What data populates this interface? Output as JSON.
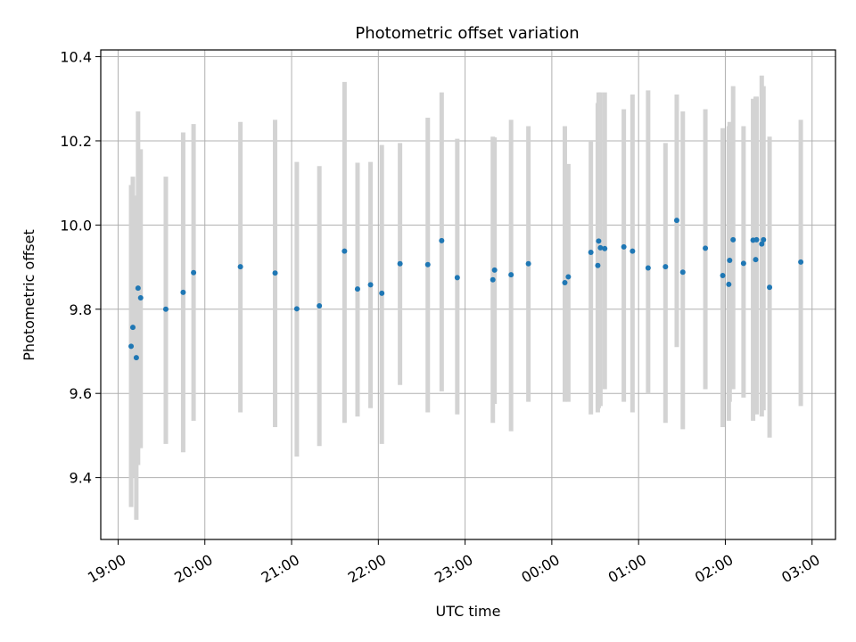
{
  "chart_data": {
    "type": "scatter",
    "title": "Photometric offset variation",
    "xlabel": "UTC time",
    "ylabel": "Photometric offset",
    "x_ticks": [
      "19:00",
      "20:00",
      "21:00",
      "22:00",
      "23:00",
      "00:00",
      "01:00",
      "02:00",
      "03:00"
    ],
    "y_ticks": [
      "9.4",
      "9.6",
      "9.8",
      "10.0",
      "10.2",
      "10.4"
    ],
    "x_unit": "hours since 19:00 UTC",
    "xlim": [
      -0.2,
      8.27
    ],
    "ylim": [
      9.253,
      10.416
    ],
    "grid": true,
    "errorbar_color": "#d3d3d3",
    "marker_color": "#1f77b4",
    "x": [
      0.15,
      0.17,
      0.21,
      0.23,
      0.26,
      0.55,
      0.75,
      0.87,
      1.41,
      1.81,
      2.06,
      2.32,
      2.61,
      2.76,
      2.91,
      3.04,
      3.25,
      3.57,
      3.73,
      3.91,
      4.32,
      4.34,
      4.53,
      4.73,
      5.15,
      5.19,
      5.45,
      5.53,
      5.54,
      5.56,
      5.61,
      5.83,
      5.93,
      6.11,
      6.31,
      6.44,
      6.51,
      6.77,
      6.97,
      7.04,
      7.05,
      7.09,
      7.21,
      7.32,
      7.35,
      7.36,
      7.42,
      7.44,
      7.51,
      7.87
    ],
    "y": [
      9.712,
      9.757,
      9.685,
      9.85,
      9.827,
      9.8,
      9.84,
      9.887,
      9.901,
      9.886,
      9.801,
      9.808,
      9.938,
      9.848,
      9.858,
      9.838,
      9.908,
      9.906,
      9.963,
      9.875,
      9.87,
      9.893,
      9.882,
      9.908,
      9.863,
      9.877,
      9.935,
      9.904,
      9.962,
      9.946,
      9.944,
      9.948,
      9.938,
      9.898,
      9.901,
      10.011,
      9.888,
      9.945,
      9.88,
      9.859,
      9.916,
      9.965,
      9.909,
      9.964,
      9.918,
      9.965,
      9.955,
      9.965,
      9.852,
      9.912
    ],
    "y_lower": [
      9.33,
      9.4,
      9.3,
      9.43,
      9.47,
      9.48,
      9.46,
      9.535,
      9.555,
      9.52,
      9.45,
      9.475,
      9.53,
      9.545,
      9.565,
      9.48,
      9.62,
      9.555,
      9.605,
      9.55,
      9.53,
      9.575,
      9.51,
      9.58,
      9.58,
      9.58,
      9.55,
      9.555,
      9.565,
      9.57,
      9.61,
      9.58,
      9.555,
      9.6,
      9.53,
      9.71,
      9.515,
      9.61,
      9.52,
      9.535,
      9.58,
      9.61,
      9.59,
      9.535,
      9.62,
      9.55,
      9.545,
      9.56,
      9.495,
      9.57
    ],
    "y_upper": [
      10.095,
      10.115,
      10.07,
      10.27,
      10.18,
      10.115,
      10.22,
      10.24,
      10.245,
      10.25,
      10.15,
      10.14,
      10.34,
      10.148,
      10.15,
      10.19,
      10.195,
      10.255,
      10.315,
      10.205,
      10.21,
      10.208,
      10.25,
      10.235,
      10.235,
      10.145,
      10.2,
      10.29,
      10.315,
      10.315,
      10.315,
      10.275,
      10.31,
      10.32,
      10.195,
      10.31,
      10.27,
      10.275,
      10.23,
      10.235,
      10.245,
      10.33,
      10.235,
      10.3,
      10.305,
      10.305,
      10.355,
      10.33,
      10.21,
      10.25
    ]
  }
}
